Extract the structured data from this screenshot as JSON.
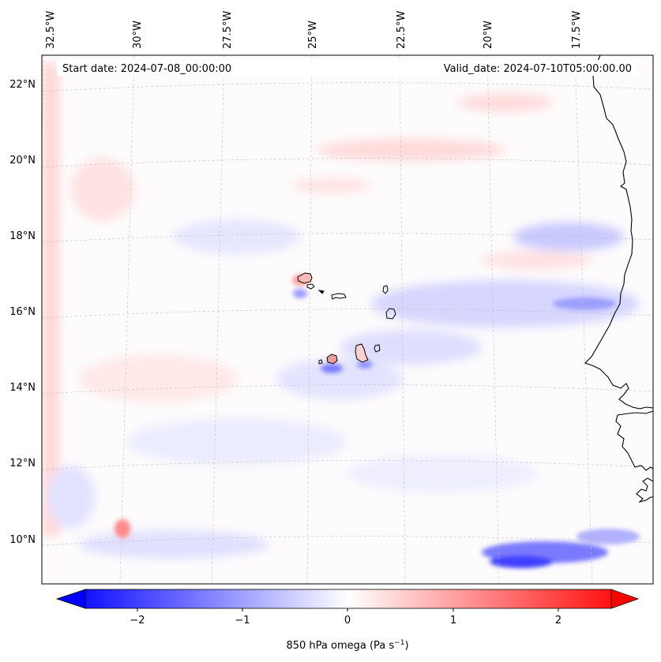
{
  "map": {
    "start_date": "Start date: 2024-07-08_00:00:00",
    "valid_date": "Valid_date: 2024-07-10T05:00:00.00",
    "lon_labels": [
      "32.5°W",
      "30°W",
      "27.5°W",
      "25°W",
      "22.5°W",
      "20°W",
      "17.5°W"
    ],
    "lat_labels": [
      "22°N",
      "20°N",
      "18°N",
      "16°N",
      "14°N",
      "12°N",
      "10°N"
    ],
    "variable": "850 hPa omega",
    "colorbar": {
      "label": "850 hPa omega (Pa s",
      "unit_exponent": "−1",
      "label_close": ")",
      "ticks": [
        "−2",
        "−1",
        "0",
        "1",
        "2"
      ],
      "range": [
        -2.5,
        2.5
      ],
      "colormap": [
        "#0000ff",
        "#ffffff",
        "#ff0000"
      ]
    },
    "colors": {
      "coastline": "#000000",
      "gridline": "#bfbfbf",
      "negative": "#0000ff",
      "positive": "#ff0000"
    }
  }
}
